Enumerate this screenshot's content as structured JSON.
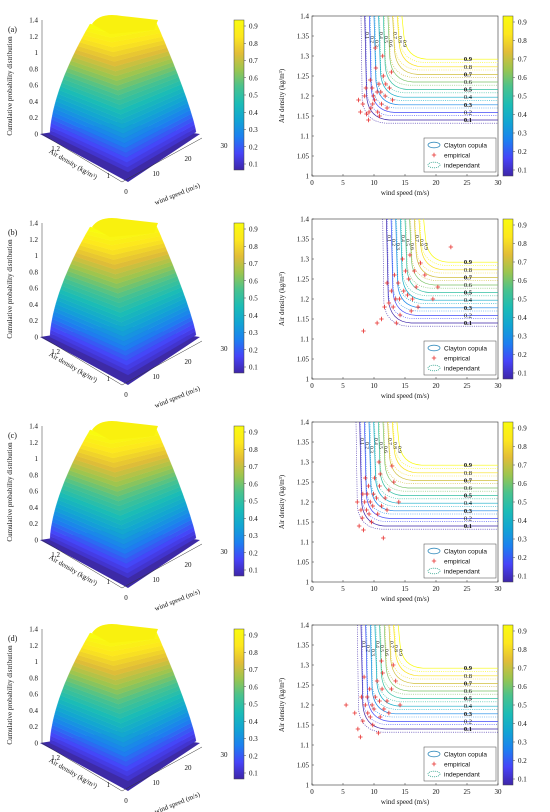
{
  "panel_labels": [
    "(a)",
    "(b)",
    "(c)",
    "(d)"
  ],
  "surface_axes": {
    "zlabel": "Cumulative probability distribution",
    "ylabel": "Air density (kg/m³)",
    "xlabel": "wind speed (m/s)",
    "z_ticks": [
      "0",
      "0.2",
      "0.4",
      "0.6",
      "0.8",
      "1",
      "1.2",
      "1.4"
    ],
    "rho_ticks": [
      "1",
      "1.2"
    ],
    "v_ticks": [
      "0",
      "10",
      "20",
      "30"
    ]
  },
  "contour_axes": {
    "xlabel": "wind speed (m/s)",
    "ylabel": "Air density (kg/m³)",
    "x_ticks": [
      "0",
      "5",
      "10",
      "15",
      "20",
      "25",
      "30"
    ],
    "y_ticks": [
      "1",
      "1.05",
      "1.1",
      "1.15",
      "1.2",
      "1.25",
      "1.3",
      "1.35",
      "1.4"
    ],
    "contour_label_values": [
      "0.1",
      "0.2",
      "0.3",
      "0.4",
      "0.5",
      "0.6",
      "0.7",
      "0.8",
      "0.9"
    ]
  },
  "legend": {
    "copula": "Clayton copula",
    "empirical": "empirical",
    "independent": "independant"
  },
  "colorbar": {
    "surface_ticks": [
      "0.1",
      "0.2",
      "0.3",
      "0.4",
      "0.5",
      "0.6",
      "0.7",
      "0.8",
      "0.9"
    ],
    "contour_ticks": [
      "0.1",
      "0.2",
      "0.3",
      "0.4",
      "0.5",
      "0.6",
      "0.7",
      "0.8",
      "0.9"
    ]
  },
  "colors": {
    "parula": [
      "#3e26a8",
      "#4743f8",
      "#1d7ff0",
      "#12a4d3",
      "#1bbcb6",
      "#49c28e",
      "#9bc54f",
      "#e2bd37",
      "#fde71e",
      "#f9fb0e"
    ],
    "empirical": "#e8302e",
    "copula_legend": "#3a8fbe",
    "independent_legend": "#2aa08a"
  },
  "chart_data": [
    {
      "panel": "(a)",
      "type": "surface+contour",
      "xlim": [
        0,
        30
      ],
      "ylim": [
        1,
        1.4
      ],
      "zlim": [
        0,
        1.4
      ],
      "contour_levels": [
        0.1,
        0.2,
        0.3,
        0.4,
        0.5,
        0.6,
        0.7,
        0.8,
        0.9
      ],
      "empirical_points": [
        [
          8.8,
          1.155
        ],
        [
          9.5,
          1.17
        ],
        [
          10.1,
          1.19
        ],
        [
          8.2,
          1.18
        ],
        [
          9.9,
          1.2
        ],
        [
          10.5,
          1.21
        ],
        [
          11.2,
          1.18
        ],
        [
          9.2,
          1.16
        ],
        [
          10.8,
          1.23
        ],
        [
          11.5,
          1.25
        ],
        [
          8.5,
          1.2
        ],
        [
          9.7,
          1.22
        ],
        [
          10.3,
          1.27
        ],
        [
          11.8,
          1.2
        ],
        [
          12.5,
          1.22
        ],
        [
          9.1,
          1.14
        ],
        [
          7.8,
          1.16
        ],
        [
          10.9,
          1.15
        ],
        [
          11.4,
          1.3
        ],
        [
          12.1,
          1.17
        ],
        [
          9.4,
          1.24
        ],
        [
          8.7,
          1.22
        ],
        [
          13,
          1.19
        ],
        [
          10.2,
          1.32
        ],
        [
          11.1,
          1.21
        ],
        [
          7.5,
          1.19
        ],
        [
          12.8,
          1.26
        ],
        [
          9.8,
          1.18
        ],
        [
          10.6,
          1.16
        ],
        [
          11.9,
          1.23
        ]
      ]
    },
    {
      "panel": "(b)",
      "type": "surface+contour",
      "xlim": [
        0,
        30
      ],
      "ylim": [
        1,
        1.4
      ],
      "zlim": [
        0,
        1.4
      ],
      "contour_levels": [
        0.1,
        0.2,
        0.3,
        0.4,
        0.5,
        0.6,
        0.7,
        0.8,
        0.9
      ],
      "empirical_points": [
        [
          13.5,
          1.2
        ],
        [
          14.8,
          1.22
        ],
        [
          15.6,
          1.25
        ],
        [
          13.1,
          1.18
        ],
        [
          16.2,
          1.2
        ],
        [
          14.2,
          1.16
        ],
        [
          12.4,
          1.19
        ],
        [
          15.1,
          1.27
        ],
        [
          16.8,
          1.23
        ],
        [
          17.5,
          1.29
        ],
        [
          11.2,
          1.15
        ],
        [
          8.3,
          1.12
        ],
        [
          10.5,
          1.14
        ],
        [
          13.9,
          1.24
        ],
        [
          14.6,
          1.3
        ],
        [
          18.2,
          1.26
        ],
        [
          16,
          1.17
        ],
        [
          12.8,
          1.22
        ],
        [
          19.5,
          1.2
        ],
        [
          22.4,
          1.33
        ],
        [
          15.4,
          1.21
        ],
        [
          13.3,
          1.26
        ],
        [
          17.1,
          1.18
        ],
        [
          14.1,
          1.2
        ],
        [
          12.1,
          1.24
        ],
        [
          16.5,
          1.27
        ],
        [
          11.7,
          1.18
        ],
        [
          15.8,
          1.31
        ],
        [
          20.3,
          1.23
        ],
        [
          13.6,
          1.14
        ]
      ]
    },
    {
      "panel": "(c)",
      "type": "surface+contour",
      "xlim": [
        0,
        30
      ],
      "ylim": [
        1,
        1.4
      ],
      "zlim": [
        0,
        1.4
      ],
      "contour_levels": [
        0.1,
        0.2,
        0.3,
        0.4,
        0.5,
        0.6,
        0.7,
        0.8,
        0.9
      ],
      "empirical_points": [
        [
          8.1,
          1.16
        ],
        [
          8.8,
          1.18
        ],
        [
          9.4,
          1.2
        ],
        [
          7.6,
          1.14
        ],
        [
          9.9,
          1.22
        ],
        [
          10.6,
          1.17
        ],
        [
          8.5,
          1.2
        ],
        [
          11.2,
          1.19
        ],
        [
          9.1,
          1.24
        ],
        [
          10.1,
          1.26
        ],
        [
          7.9,
          1.18
        ],
        [
          8.3,
          1.13
        ],
        [
          11.8,
          1.21
        ],
        [
          12.4,
          1.23
        ],
        [
          9.6,
          1.15
        ],
        [
          10.8,
          1.3
        ],
        [
          8.9,
          1.22
        ],
        [
          13.2,
          1.25
        ],
        [
          7.3,
          1.2
        ],
        [
          11.5,
          1.11
        ],
        [
          9.2,
          1.17
        ],
        [
          10.4,
          1.21
        ],
        [
          12.1,
          1.18
        ],
        [
          8.6,
          1.26
        ],
        [
          10.9,
          1.24
        ],
        [
          9.8,
          1.19
        ],
        [
          14,
          1.2
        ],
        [
          11,
          1.27
        ],
        [
          8.2,
          1.22
        ],
        [
          12.9,
          1.29
        ]
      ]
    },
    {
      "panel": "(d)",
      "type": "surface+contour",
      "xlim": [
        0,
        30
      ],
      "ylim": [
        1,
        1.4
      ],
      "zlim": [
        0,
        1.4
      ],
      "contour_levels": [
        0.1,
        0.2,
        0.3,
        0.4,
        0.5,
        0.6,
        0.7,
        0.8,
        0.9
      ],
      "empirical_points": [
        [
          8.2,
          1.16
        ],
        [
          9,
          1.18
        ],
        [
          9.7,
          1.2
        ],
        [
          7.4,
          1.14
        ],
        [
          10.2,
          1.22
        ],
        [
          11,
          1.17
        ],
        [
          8.6,
          1.2
        ],
        [
          11.6,
          1.19
        ],
        [
          9.3,
          1.24
        ],
        [
          10.5,
          1.26
        ],
        [
          6.9,
          1.18
        ],
        [
          7.8,
          1.12
        ],
        [
          12.1,
          1.21
        ],
        [
          12.8,
          1.24
        ],
        [
          9.8,
          1.15
        ],
        [
          11.2,
          1.31
        ],
        [
          8.9,
          1.22
        ],
        [
          13.5,
          1.26
        ],
        [
          5.5,
          1.2
        ],
        [
          10.7,
          1.13
        ],
        [
          9.4,
          1.17
        ],
        [
          10.9,
          1.21
        ],
        [
          12.4,
          1.18
        ],
        [
          8.4,
          1.27
        ],
        [
          11.3,
          1.24
        ],
        [
          10,
          1.19
        ],
        [
          14.2,
          1.2
        ],
        [
          11.4,
          1.28
        ],
        [
          8,
          1.22
        ],
        [
          13.1,
          1.3
        ]
      ]
    }
  ]
}
